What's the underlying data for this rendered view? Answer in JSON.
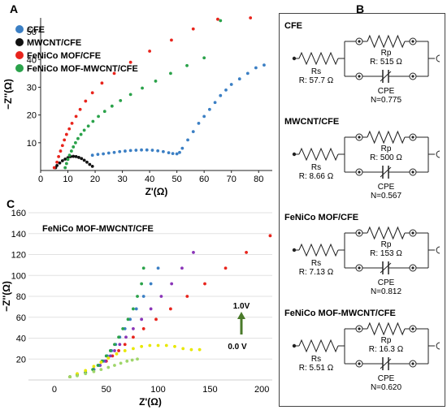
{
  "panels": {
    "a": "A",
    "b": "B",
    "c": "C"
  },
  "chart_data": [
    {
      "type": "scatter",
      "panel": "A",
      "xlabel": "Z'(Ω)",
      "ylabel": "−Z''(Ω)",
      "xlim": [
        0,
        85
      ],
      "ylim": [
        0,
        55
      ],
      "xticks": [
        "0",
        "10",
        "20",
        "30",
        "40",
        "50",
        "60",
        "70",
        "80"
      ],
      "yticks": [
        "10",
        "20",
        "30",
        "40",
        "50"
      ],
      "legend_position": "top-left",
      "series": [
        {
          "name": "CFE",
          "color": "#3b7fc4",
          "x": [
            19,
            21,
            23,
            25,
            27,
            29,
            31,
            33,
            35,
            37,
            39,
            41,
            43,
            45,
            47,
            48.5,
            50,
            51,
            52,
            54,
            56,
            58,
            60,
            62,
            64,
            66,
            68,
            70,
            73,
            76,
            79,
            82
          ],
          "y": [
            5.5,
            5.8,
            6,
            6.3,
            6.5,
            6.8,
            7,
            7.2,
            7.3,
            7.4,
            7.4,
            7.3,
            7.1,
            6.8,
            6.4,
            6.1,
            6,
            6.5,
            8,
            11,
            14,
            17,
            19.5,
            22,
            24.5,
            27,
            29,
            31,
            33,
            35,
            37,
            38
          ]
        },
        {
          "name": "MWCNT/CFE",
          "color": "#111111",
          "x": [
            5.5,
            6,
            7,
            8,
            9,
            10,
            11,
            12,
            13,
            14,
            15,
            16,
            17,
            18,
            19
          ],
          "y": [
            1,
            1.8,
            2.7,
            3.5,
            4.1,
            4.6,
            5,
            5.1,
            5,
            4.7,
            4.3,
            3.7,
            3,
            2.2,
            1.5
          ]
        },
        {
          "name": "FeNiCo MOF/CFE",
          "color": "#e8241c",
          "x": [
            5,
            6,
            6.6,
            7.3,
            8,
            8.7,
            9.5,
            10.5,
            11.5,
            13,
            14.5,
            16.5,
            19,
            22.5,
            27,
            33,
            40,
            48,
            56,
            65,
            77
          ],
          "y": [
            1,
            3,
            5,
            7,
            9,
            11,
            13,
            15,
            17,
            19.5,
            22,
            25,
            28,
            31.5,
            35,
            39,
            43,
            47,
            51,
            54.5,
            55
          ]
        },
        {
          "name": "FeNiCo MOF-MWCNT/CFE",
          "color": "#2aa24a",
          "x": [
            9,
            9.5,
            10,
            10.6,
            11.3,
            12,
            12.8,
            13.7,
            14.8,
            16,
            17.5,
            19.2,
            21.2,
            23.5,
            26.2,
            29.3,
            33,
            37.3,
            42.2,
            47.7,
            53.7,
            60,
            66
          ],
          "y": [
            1,
            2.5,
            4,
            5.5,
            7,
            8.5,
            10,
            11.5,
            13,
            14.5,
            16,
            17.7,
            19.5,
            21.3,
            23.2,
            25.2,
            27.4,
            29.7,
            32.2,
            35,
            37.8,
            40.6,
            54
          ]
        }
      ]
    },
    {
      "type": "scatter",
      "panel": "C",
      "annotation": "FeNiCo MOF-MWCNT/CFE",
      "xlabel": "Z'(Ω)",
      "ylabel": "−Z''(Ω)",
      "xlim": [
        -25,
        210
      ],
      "ylim": [
        0,
        160
      ],
      "xticks": [
        "0",
        "50",
        "100",
        "150",
        "200"
      ],
      "yticks": [
        "20",
        "40",
        "60",
        "80",
        "100",
        "120",
        "140",
        "160"
      ],
      "arrow_top_label": "1.0V",
      "arrow_bottom_label": "0.0 V",
      "series": [
        {
          "color": "#e8241c",
          "x": [
            15,
            22,
            30,
            38,
            44,
            50,
            56,
            62,
            68,
            76,
            86,
            98,
            112,
            128,
            145,
            165,
            185,
            208
          ],
          "y": [
            3,
            5,
            7,
            10,
            14,
            18,
            23,
            28,
            34,
            41,
            49,
            58,
            68,
            80,
            92,
            107,
            122,
            138
          ]
        },
        {
          "color": "#8a35b8",
          "x": [
            15,
            22,
            30,
            38,
            44,
            49,
            54,
            58,
            63,
            69,
            76,
            84,
            93,
            103,
            113,
            123,
            134
          ],
          "y": [
            3,
            5,
            7,
            10,
            14,
            18,
            23,
            28,
            34,
            41,
            49,
            58,
            68,
            80,
            92,
            107,
            122
          ]
        },
        {
          "color": "#3b7fc4",
          "x": [
            15,
            22,
            30,
            38,
            43,
            47,
            51,
            55,
            59,
            63,
            68,
            73,
            79,
            86,
            93,
            100
          ],
          "y": [
            3,
            5,
            7,
            10,
            14,
            18,
            23,
            28,
            34,
            41,
            49,
            58,
            68,
            80,
            92,
            107
          ]
        },
        {
          "color": "#2aa24a",
          "x": [
            15,
            22,
            30,
            37,
            42,
            46,
            50,
            54,
            58,
            62,
            66,
            71,
            76,
            80,
            84,
            86
          ],
          "y": [
            3,
            5,
            7,
            10,
            14,
            18,
            23,
            28,
            34,
            41,
            49,
            58,
            68,
            80,
            92,
            107
          ]
        },
        {
          "color": "#e8e800",
          "x": [
            15,
            22,
            30,
            38,
            45,
            52,
            60,
            68,
            76,
            84,
            92,
            100,
            108,
            116,
            124,
            132,
            140
          ],
          "y": [
            3,
            6,
            9,
            13,
            17,
            21,
            25,
            28,
            30,
            32,
            33,
            33,
            33,
            32,
            30,
            29,
            29
          ]
        },
        {
          "color": "#9fd66a",
          "x": [
            15,
            22,
            30,
            38,
            45,
            52,
            58,
            64,
            70,
            75,
            80
          ],
          "y": [
            3,
            4,
            6,
            8,
            10,
            12,
            14,
            16,
            18,
            19,
            20
          ]
        }
      ]
    }
  ],
  "circuits": [
    {
      "title": "CFE",
      "rs": "R: 57.7 Ω",
      "rp": "R: 515 Ω",
      "n": "N=0.775"
    },
    {
      "title": "MWCNT/CFE",
      "rs": "R: 8.66 Ω",
      "rp": "R: 500 Ω",
      "n": "N=0.567"
    },
    {
      "title": "FeNiCo MOF/CFE",
      "rs": "R: 7.13 Ω",
      "rp": "R: 153 Ω",
      "n": "N=0.812"
    },
    {
      "title": "FeNiCo MOF-MWCNT/CFE",
      "rs": "R: 5.51 Ω",
      "rp": "R: 16.3 Ω",
      "n": "N=0.620"
    }
  ],
  "circuit_labels": {
    "rs": "Rs",
    "rp": "Rp",
    "cpe": "CPE"
  }
}
